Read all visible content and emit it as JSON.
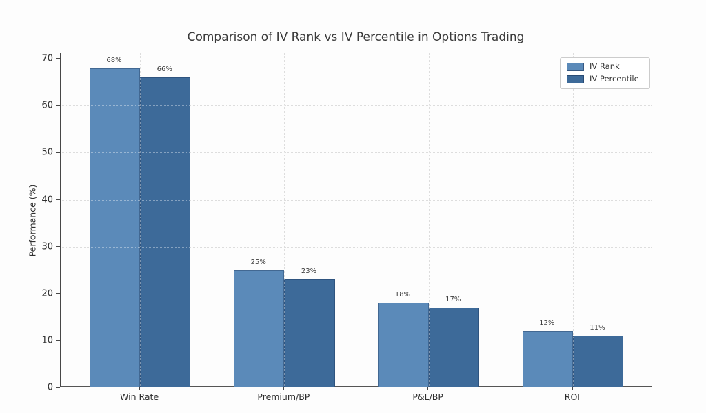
{
  "chart_data": {
    "type": "bar",
    "title": "Comparison of IV Rank vs IV Percentile in Options Trading",
    "ylabel": "Performance (%)",
    "xlabel": "",
    "categories": [
      "Win Rate",
      "Premium/BP",
      "P&L/BP",
      "ROI"
    ],
    "series": [
      {
        "name": "IV Rank",
        "color": "#5b8ab9",
        "values": [
          68,
          25,
          18,
          12
        ],
        "labels": [
          "68%",
          "25%",
          "18%",
          "12%"
        ]
      },
      {
        "name": "IV Percentile",
        "color": "#3d6a99",
        "values": [
          66,
          23,
          17,
          11
        ],
        "labels": [
          "66%",
          "23%",
          "17%",
          "11%"
        ]
      }
    ],
    "ylim": [
      0,
      71.2
    ],
    "yticks": [
      0,
      10,
      20,
      30,
      40,
      50,
      60,
      70
    ],
    "grid": "dotted",
    "legend_position": "upper right"
  }
}
